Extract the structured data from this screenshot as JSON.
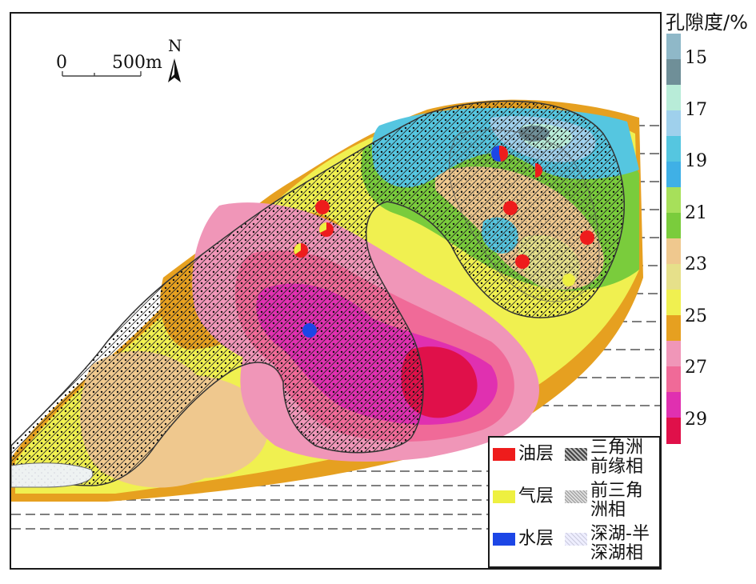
{
  "scale_bar": {
    "start": "0",
    "end": "500m"
  },
  "north_arrow": {
    "label": "N"
  },
  "colorbar": {
    "title": "孔隙度/%",
    "ticks": [
      "15",
      "17",
      "19",
      "21",
      "23",
      "25",
      "27",
      "29"
    ],
    "colors": [
      "#8fb8c8",
      "#6f8f98",
      "#b8ecd8",
      "#9fd0ec",
      "#55c6e0",
      "#3fb0e6",
      "#a7e05a",
      "#7acc3c",
      "#efc88e",
      "#e6e08a",
      "#f0f050",
      "#e6a020",
      "#f096b8",
      "#f06a98",
      "#e030b0",
      "#e0104a"
    ]
  },
  "legend": {
    "wells": [
      {
        "label": "油层",
        "color": "#ee1c1c"
      },
      {
        "label": "气层",
        "color": "#eef040"
      },
      {
        "label": "水层",
        "color": "#1c46e6"
      }
    ],
    "facies": [
      {
        "label_line1": "三角洲",
        "label_line2": "前缘相"
      },
      {
        "label_line1": "前三角",
        "label_line2": "洲相"
      },
      {
        "label_line1": "深湖-半",
        "label_line2": "深湖相"
      }
    ]
  }
}
